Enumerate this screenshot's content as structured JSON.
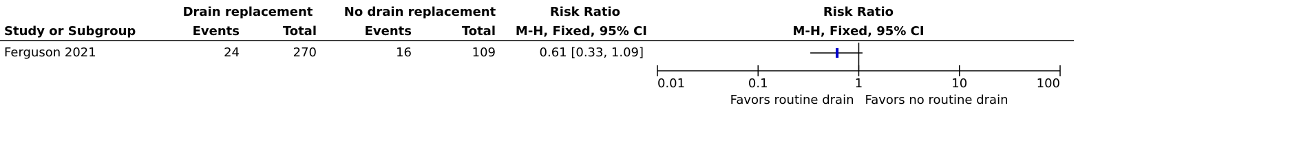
{
  "chart_data": {
    "type": "forest",
    "header_top": [
      "Drain replacement",
      "No drain replacement",
      "Risk Ratio",
      "Risk Ratio"
    ],
    "columns": [
      "Study or Subgroup",
      "Events",
      "Total",
      "Events",
      "Total",
      "M-H, Fixed, 95% CI",
      "M-H, Fixed, 95% CI"
    ],
    "studies": [
      {
        "name": "Ferguson 2021",
        "events1": 24,
        "total1": 270,
        "events2": 16,
        "total2": 109,
        "rr": 0.61,
        "ci": [
          0.33,
          1.09
        ],
        "rr_label": "0.61 [0.33, 1.09]"
      }
    ],
    "xscale": "log",
    "xlim": [
      0.01,
      100
    ],
    "xticks": [
      0.01,
      0.1,
      1,
      10,
      100
    ],
    "null_line": 1,
    "favors": [
      "Favors routine drain",
      "Favors no routine drain"
    ],
    "color": "#0000cc"
  }
}
